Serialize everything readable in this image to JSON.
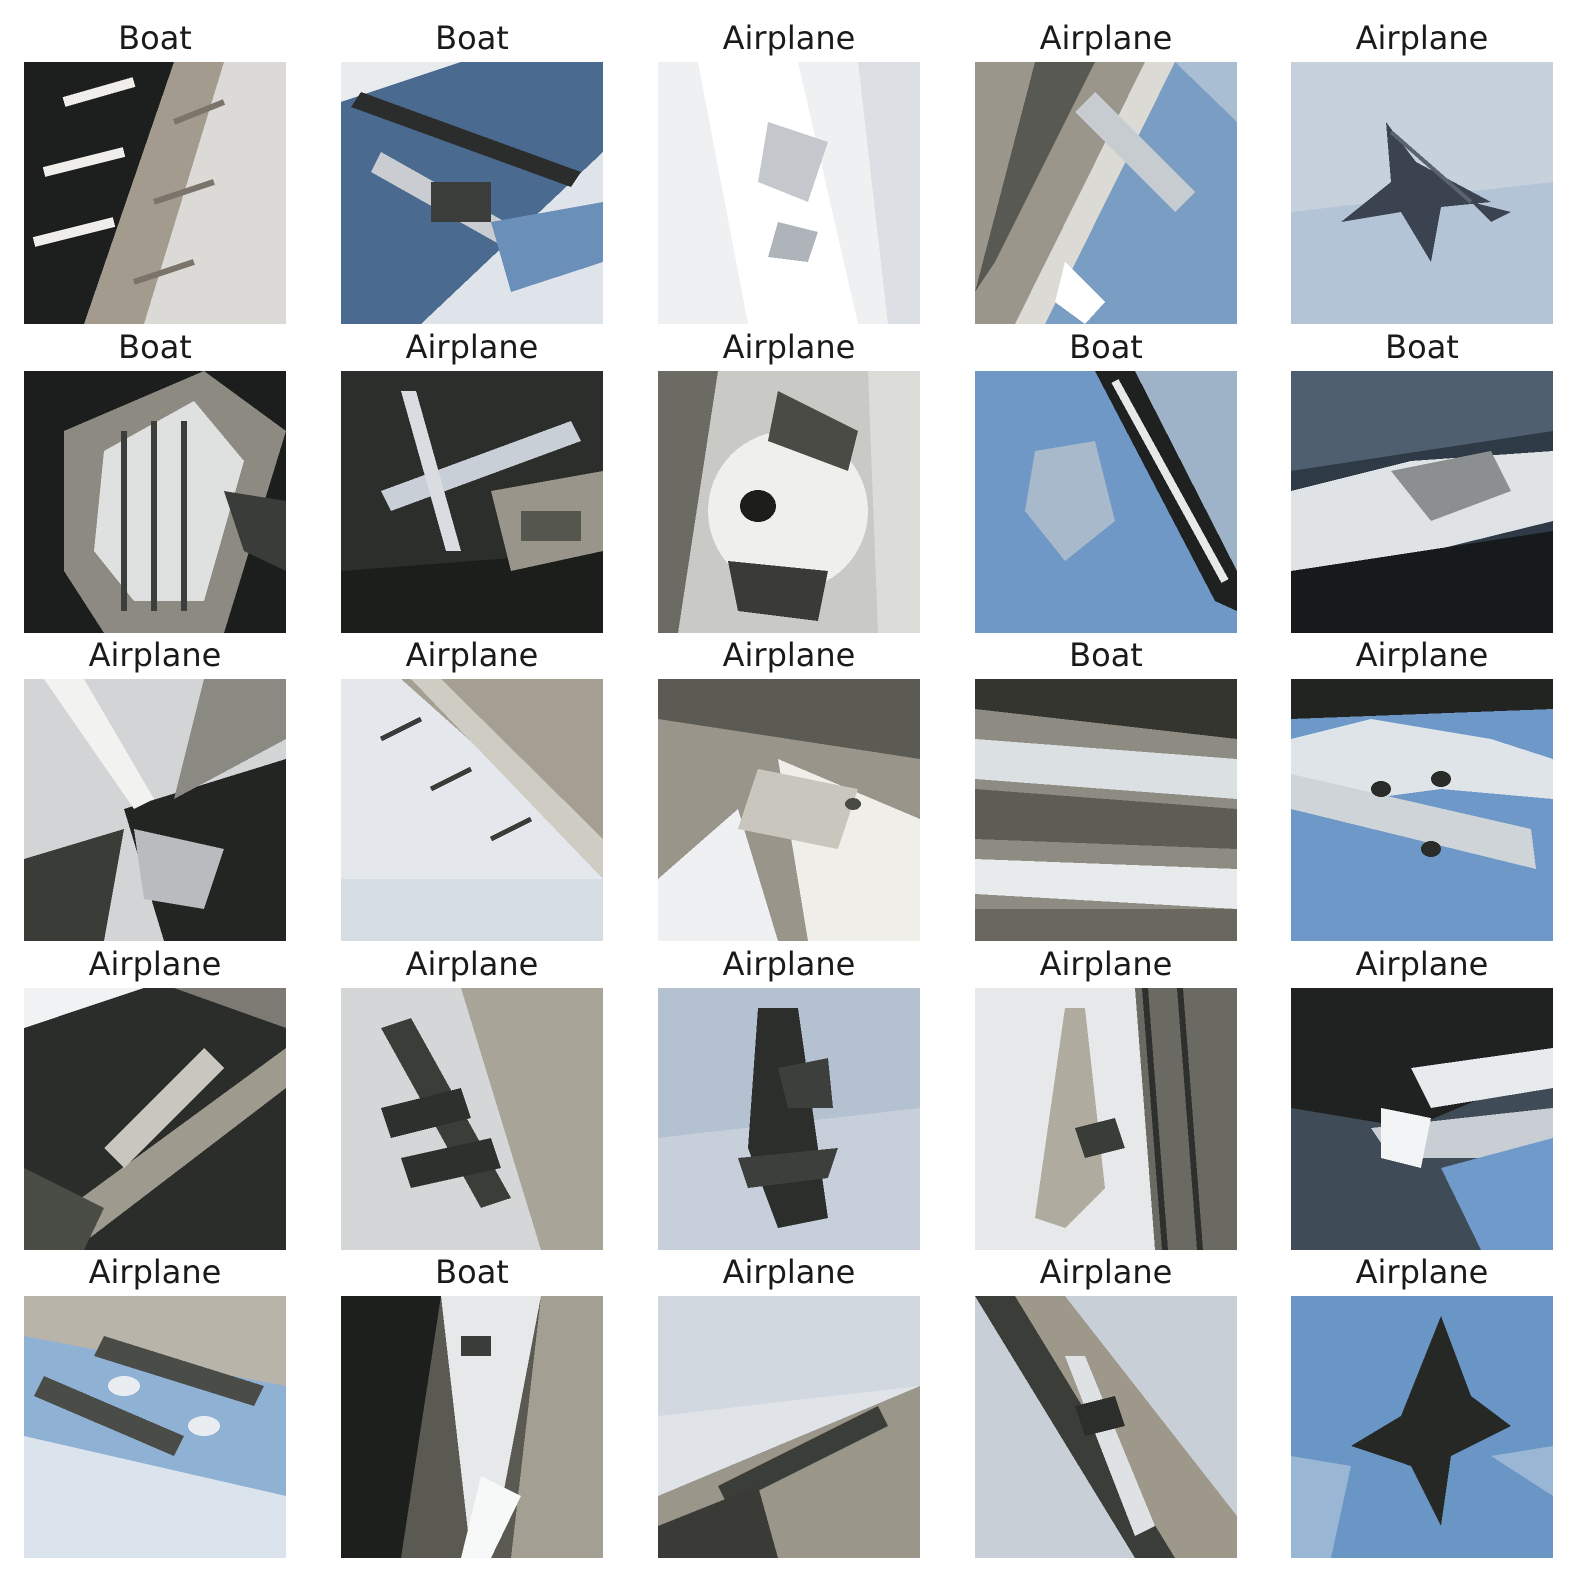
{
  "grid": {
    "rows": 5,
    "cols": 5,
    "tiles": [
      {
        "label": "Boat",
        "scene": "dark-hull-ladder"
      },
      {
        "label": "Boat",
        "scene": "blue-deck-plane"
      },
      {
        "label": "Airplane",
        "scene": "white-snow-fuselage"
      },
      {
        "label": "Airplane",
        "scene": "diagonal-hangar-sky"
      },
      {
        "label": "Airplane",
        "scene": "fighter-jet-sky"
      },
      {
        "label": "Boat",
        "scene": "ribbed-hull-dark"
      },
      {
        "label": "Airplane",
        "scene": "plane-over-ground"
      },
      {
        "label": "Airplane",
        "scene": "white-engine-closeup"
      },
      {
        "label": "Boat",
        "scene": "blue-sky-rail"
      },
      {
        "label": "Boat",
        "scene": "wake-dark-water"
      },
      {
        "label": "Airplane",
        "scene": "twisted-metal-dark"
      },
      {
        "label": "Airplane",
        "scene": "pale-wing-diagonal"
      },
      {
        "label": "Airplane",
        "scene": "gray-structure-closeup"
      },
      {
        "label": "Boat",
        "scene": "coastline-hills"
      },
      {
        "label": "Airplane",
        "scene": "airliner-blue-sky"
      },
      {
        "label": "Airplane",
        "scene": "dark-wing-trees"
      },
      {
        "label": "Airplane",
        "scene": "formation-diagonal"
      },
      {
        "label": "Airplane",
        "scene": "prop-plane-clouds"
      },
      {
        "label": "Airplane",
        "scene": "plane-hangar-side"
      },
      {
        "label": "Airplane",
        "scene": "white-jet-dark-blue"
      },
      {
        "label": "Airplane",
        "scene": "bombers-clouds"
      },
      {
        "label": "Boat",
        "scene": "bow-white-hull"
      },
      {
        "label": "Airplane",
        "scene": "plane-low-clouds"
      },
      {
        "label": "Airplane",
        "scene": "plane-runway-diagonal"
      },
      {
        "label": "Airplane",
        "scene": "fighter-blue-sky"
      }
    ]
  }
}
